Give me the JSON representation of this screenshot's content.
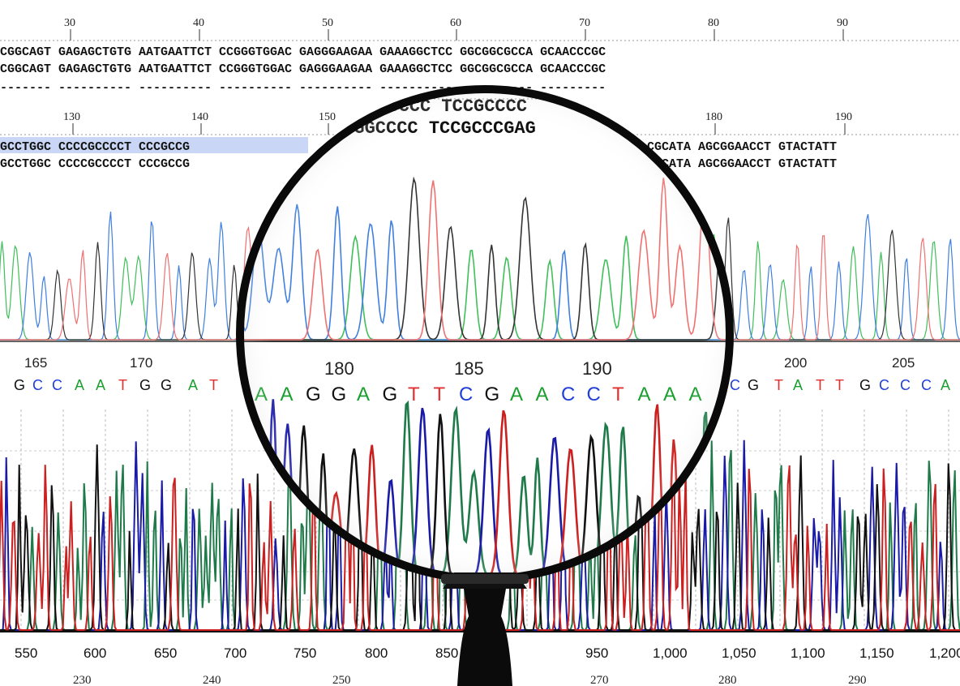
{
  "colors": {
    "A": "#1a9f2e",
    "C": "#1f3fd6",
    "G": "#111111",
    "T": "#e03030",
    "trace_A": "#1f7a4a",
    "trace_C": "#1a1aa8",
    "trace_G": "#111111",
    "trace_T": "#cc1f1f",
    "highlight": "#c9d6f5"
  },
  "top_panel": {
    "ruler1": [
      "30",
      "40",
      "50",
      "60",
      "70",
      "80",
      "90"
    ],
    "row1a": "CGGCAGT GAGAGCTGTG AATGAATTCT CCGGGTGGAC GAGGGAAGAA GAAAGGCTCC GGCGGCGCCA GCAACCCGC",
    "row1b": "CGGCAGT GAGAGCTGTG AATGAATTCT CCGGGTGGAC GAGGGAAGAA GAAAGGCTCC GGCGGCGCCA GCAACCCGC",
    "ruler2": [
      "130",
      "140",
      "150",
      "180",
      "190"
    ],
    "row2a_left": "GCCTGGC CCCCGCCCCT CCCGCCG",
    "row2a_right": "CGCATA AGCGGAACCT GTACTATT",
    "row2b_left": "GCCTGGC CCCCGCCCCT CCCGCCG",
    "row2b_right": "CGCATA AGCGGAACCT GTACTATT",
    "magnified_line1": "GGCCCC  TCCGCCCC",
    "magnified_line2": "CCGGCCCC  TCCGCCCGAG"
  },
  "middle_panel": {
    "positions": [
      "165",
      "170",
      "180",
      "185",
      "190",
      "200",
      "205"
    ],
    "bases_left": [
      "G",
      "C",
      "C",
      "A",
      "A",
      "T",
      "G",
      "G",
      "A",
      "T"
    ],
    "bases_mag": [
      "A",
      "A",
      "G",
      "G",
      "A",
      "G",
      "T",
      "T",
      "C",
      "G",
      "A",
      "A",
      "C",
      "C",
      "T",
      "A",
      "A",
      "A"
    ],
    "bases_right": [
      "C",
      "G",
      "T",
      "A",
      "T",
      "T",
      "G",
      "C",
      "C",
      "C",
      "A"
    ]
  },
  "bottom_panel": {
    "x_ticks": [
      "550",
      "600",
      "650",
      "700",
      "750",
      "800",
      "850",
      "950",
      "1,000",
      "1,050",
      "1,100",
      "1,150",
      "1,200"
    ],
    "bottom_numbers": [
      "230",
      "240",
      "250",
      "270",
      "280",
      "290"
    ]
  }
}
